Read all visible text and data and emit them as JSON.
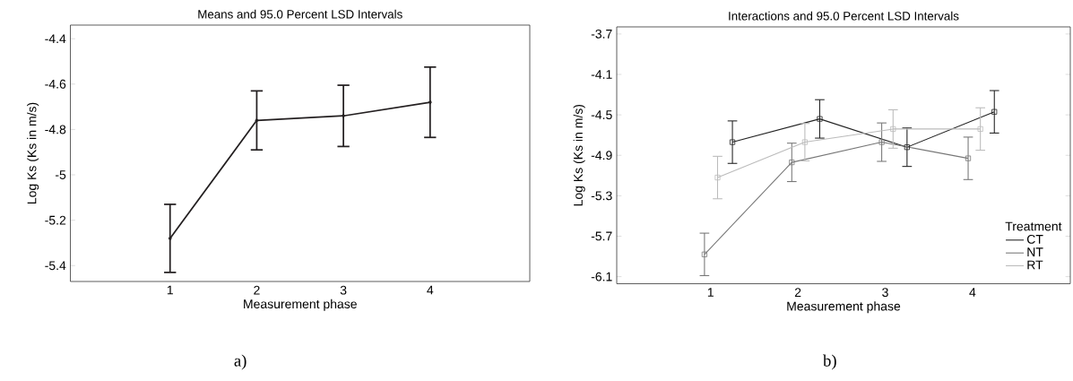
{
  "chart_data": [
    {
      "type": "line",
      "title": "Means and 95.0 Percent LSD Intervals",
      "xlabel": "Measurement phase",
      "ylabel": "Log Ks  (Ks in m/s)",
      "marker": "diamond",
      "line_style": "solid",
      "xlim": [
        -0.15,
        5.15
      ],
      "xticks": [
        1,
        2,
        3,
        4
      ],
      "ylim": [
        -5.47,
        -4.34
      ],
      "yticks": [
        -5.4,
        -5.2,
        -5,
        -4.8,
        -4.6,
        -4.4
      ],
      "series": [
        {
          "color": "#231f20",
          "x": [
            1,
            2,
            3,
            4
          ],
          "values": [
            -5.28,
            -4.76,
            -4.74,
            -4.68
          ],
          "errors": [
            0.15,
            0.13,
            0.135,
            0.155
          ]
        }
      ],
      "annotations": [
        "a)"
      ]
    },
    {
      "type": "line",
      "title": "Interactions and 95.0 Percent LSD Intervals",
      "xlabel": "Measurement phase",
      "ylabel": "Log Ks  (Ks in m/s)",
      "marker": "square",
      "line_style": "solid",
      "legend": "bottom right",
      "legend_title": "Treatment",
      "xlim": [
        -0.075,
        5.12
      ],
      "xticks": [
        1,
        2,
        3,
        4
      ],
      "ylim": [
        -6.17,
        -3.63
      ],
      "yticks": [
        -6.1,
        -5.7,
        -5.3,
        -4.9,
        -4.5,
        -4.1,
        -3.7
      ],
      "series": [
        {
          "name": "CT",
          "color": "#222222",
          "x": [
            1.25,
            2.25,
            3.25,
            4.25
          ],
          "values": [
            -4.77,
            -4.54,
            -4.82,
            -4.47
          ],
          "errors": [
            0.21,
            0.19,
            0.19,
            0.21
          ]
        },
        {
          "name": "NT",
          "color": "#777777",
          "x": [
            0.93,
            1.93,
            2.96,
            3.95
          ],
          "values": [
            -5.88,
            -4.97,
            -4.77,
            -4.93
          ],
          "errors": [
            0.21,
            0.19,
            0.19,
            0.21
          ]
        },
        {
          "name": "RT",
          "color": "#bbbbbb",
          "x": [
            1.08,
            2.08,
            3.09,
            4.09
          ],
          "values": [
            -5.12,
            -4.77,
            -4.64,
            -4.64
          ],
          "errors": [
            0.21,
            0.185,
            0.19,
            0.21
          ]
        }
      ],
      "annotations": [
        "b)"
      ]
    }
  ]
}
